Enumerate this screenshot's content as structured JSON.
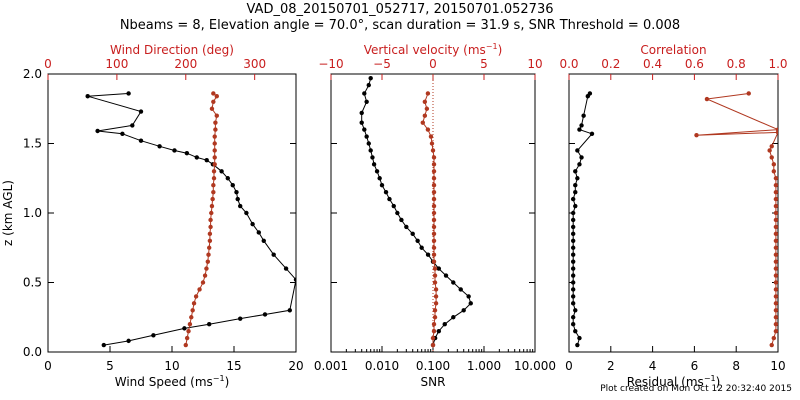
{
  "title_line1": "VAD_08_20150701_052717, 20150701.052736",
  "title_line2": "Nbeams = 8, Elevation angle = 70.0°, scan duration = 31.9 s, SNR Threshold = 0.008",
  "footer": "Plot created on Mon Oct 12 20:32:40 2015",
  "colors": {
    "primary": "#000000",
    "secondary": "#b03820",
    "secondary_text": "#c81e1e"
  },
  "chart_data": [
    {
      "type": "line",
      "ylabel": "z (km AGL)",
      "ylim": [
        0,
        2.0
      ],
      "yticks": [
        "0.0",
        "0.5",
        "1.0",
        "1.5",
        "2.0"
      ],
      "bottom_axis": {
        "label": "Wind Speed (ms",
        "label_sup": "−1",
        "label_end": ")",
        "range": [
          0,
          20
        ],
        "ticks": [
          "0",
          "5",
          "10",
          "15",
          "20"
        ]
      },
      "top_axis": {
        "label": "Wind Direction (deg)",
        "range": [
          0,
          360
        ],
        "ticks": [
          "0",
          "100",
          "200",
          "300"
        ]
      },
      "series": [
        {
          "axis": "bottom",
          "color": "black",
          "x": [
            4.5,
            6.5,
            8.5,
            11.0,
            13.0,
            15.5,
            17.5,
            19.5,
            20.0,
            19.2,
            18.2,
            17.4,
            17.0,
            16.5,
            16.0,
            15.5,
            15.3,
            15.2,
            14.9,
            14.5,
            14.0,
            13.3,
            12.8,
            12.0,
            11.2,
            10.2,
            9.0,
            7.5,
            6.0,
            4.0,
            6.8,
            7.5,
            3.2,
            6.5
          ],
          "y": [
            0.05,
            0.08,
            0.12,
            0.17,
            0.2,
            0.24,
            0.27,
            0.3,
            0.52,
            0.6,
            0.7,
            0.8,
            0.86,
            0.92,
            1.0,
            1.05,
            1.1,
            1.15,
            1.2,
            1.25,
            1.3,
            1.35,
            1.38,
            1.4,
            1.43,
            1.45,
            1.48,
            1.52,
            1.57,
            1.59,
            1.63,
            1.73,
            1.84,
            1.86
          ]
        },
        {
          "axis": "top",
          "color": "red",
          "x": [
            200,
            202,
            204,
            206,
            208,
            210,
            212,
            215,
            220,
            225,
            228,
            230,
            232,
            233,
            234,
            235,
            235,
            236,
            236,
            237,
            238,
            239,
            240,
            240,
            241,
            241,
            242,
            242,
            242,
            242,
            242,
            243,
            243,
            245,
            238,
            240,
            245,
            240
          ],
          "y": [
            0.05,
            0.1,
            0.15,
            0.2,
            0.25,
            0.3,
            0.35,
            0.4,
            0.45,
            0.5,
            0.55,
            0.6,
            0.65,
            0.7,
            0.75,
            0.8,
            0.85,
            0.9,
            0.95,
            1.0,
            1.05,
            1.1,
            1.15,
            1.2,
            1.25,
            1.3,
            1.35,
            1.4,
            1.45,
            1.5,
            1.55,
            1.6,
            1.65,
            1.7,
            1.75,
            1.8,
            1.84,
            1.86
          ]
        }
      ]
    },
    {
      "type": "line",
      "ylim": [
        0,
        2.0
      ],
      "bottom_axis": {
        "label": "SNR",
        "scale": "log",
        "range": [
          0.001,
          10.0
        ],
        "ticks": [
          "0.001",
          "0.010",
          "0.100",
          "1.000",
          "10.000"
        ]
      },
      "top_axis": {
        "label": "Vertical velocity (ms",
        "label_sup": "−1",
        "label_end": ")",
        "range": [
          -10,
          10
        ],
        "ticks": [
          "−10",
          "−5",
          "0",
          "5",
          "10"
        ]
      },
      "reference_line": {
        "axis": "top",
        "x": 0,
        "style": "dotted",
        "color": "red"
      },
      "series": [
        {
          "axis": "bottom",
          "color": "black",
          "x": [
            0.1,
            0.11,
            0.13,
            0.17,
            0.25,
            0.4,
            0.55,
            0.5,
            0.35,
            0.25,
            0.18,
            0.13,
            0.1,
            0.08,
            0.06,
            0.05,
            0.04,
            0.03,
            0.024,
            0.02,
            0.017,
            0.014,
            0.012,
            0.01,
            0.009,
            0.008,
            0.007,
            0.0065,
            0.006,
            0.0055,
            0.005,
            0.0045,
            0.004,
            0.004,
            0.005,
            0.0045,
            0.0055,
            0.006
          ],
          "y": [
            0.05,
            0.1,
            0.15,
            0.2,
            0.25,
            0.3,
            0.35,
            0.4,
            0.45,
            0.5,
            0.55,
            0.6,
            0.65,
            0.7,
            0.75,
            0.8,
            0.85,
            0.9,
            0.95,
            1.0,
            1.05,
            1.1,
            1.15,
            1.2,
            1.25,
            1.3,
            1.35,
            1.4,
            1.45,
            1.5,
            1.55,
            1.6,
            1.65,
            1.72,
            1.8,
            1.86,
            1.92,
            1.97
          ]
        },
        {
          "axis": "top",
          "color": "red",
          "x": [
            0,
            0,
            0.1,
            0.1,
            0.2,
            0.2,
            0.3,
            0.3,
            0.3,
            0.2,
            0.2,
            0.2,
            0.1,
            0.1,
            0.1,
            0.1,
            0.1,
            0.1,
            0.1,
            0.1,
            0.1,
            0.1,
            0.1,
            0.1,
            0.1,
            0.1,
            0.1,
            0.1,
            0.0,
            -0.1,
            -0.2,
            -0.5,
            -1.0,
            -0.8,
            -0.6,
            -0.8,
            -0.5
          ],
          "y": [
            0.05,
            0.1,
            0.15,
            0.2,
            0.25,
            0.3,
            0.35,
            0.4,
            0.45,
            0.5,
            0.55,
            0.6,
            0.65,
            0.7,
            0.75,
            0.8,
            0.85,
            0.9,
            0.95,
            1.0,
            1.05,
            1.1,
            1.15,
            1.2,
            1.25,
            1.3,
            1.35,
            1.4,
            1.45,
            1.5,
            1.55,
            1.6,
            1.65,
            1.7,
            1.75,
            1.8,
            1.86
          ]
        }
      ]
    },
    {
      "type": "line",
      "ylim": [
        0,
        2.0
      ],
      "bottom_axis": {
        "label": "Residual (ms",
        "label_sup": "−1",
        "label_end": ")",
        "range": [
          0,
          10
        ],
        "ticks": [
          "0",
          "2",
          "4",
          "6",
          "8",
          "10"
        ]
      },
      "top_axis": {
        "label": "Correlation",
        "range": [
          0,
          1.0
        ],
        "ticks": [
          "0.0",
          "0.2",
          "0.4",
          "0.6",
          "0.8",
          "1.0"
        ]
      },
      "series": [
        {
          "axis": "bottom",
          "color": "black",
          "x": [
            0.4,
            0.5,
            0.3,
            0.2,
            0.2,
            0.3,
            0.2,
            0.2,
            0.2,
            0.2,
            0.2,
            0.2,
            0.2,
            0.2,
            0.2,
            0.2,
            0.2,
            0.2,
            0.2,
            0.2,
            0.3,
            0.2,
            0.3,
            0.3,
            0.4,
            0.3,
            0.5,
            0.6,
            0.4,
            1.1,
            0.5,
            0.6,
            0.7,
            0.9,
            1.0
          ],
          "y": [
            0.05,
            0.1,
            0.15,
            0.2,
            0.25,
            0.3,
            0.35,
            0.4,
            0.45,
            0.5,
            0.55,
            0.6,
            0.65,
            0.7,
            0.75,
            0.8,
            0.85,
            0.9,
            0.95,
            1.0,
            1.05,
            1.1,
            1.15,
            1.2,
            1.25,
            1.3,
            1.35,
            1.4,
            1.45,
            1.57,
            1.6,
            1.63,
            1.7,
            1.84,
            1.86
          ]
        },
        {
          "axis": "top",
          "color": "red",
          "x": [
            0.97,
            0.98,
            0.99,
            0.99,
            0.99,
            0.99,
            0.99,
            0.99,
            0.99,
            0.99,
            0.99,
            0.99,
            0.99,
            0.99,
            0.99,
            0.99,
            0.99,
            0.99,
            0.99,
            0.99,
            0.99,
            0.99,
            0.99,
            0.99,
            0.99,
            0.98,
            0.98,
            0.97,
            0.96,
            0.97,
            1.0,
            0.61,
            1.0,
            0.66,
            0.86
          ],
          "y": [
            0.05,
            0.1,
            0.15,
            0.2,
            0.25,
            0.3,
            0.35,
            0.4,
            0.45,
            0.5,
            0.55,
            0.6,
            0.65,
            0.7,
            0.75,
            0.8,
            0.85,
            0.9,
            0.95,
            1.0,
            1.05,
            1.1,
            1.15,
            1.2,
            1.25,
            1.3,
            1.35,
            1.4,
            1.45,
            1.48,
            1.58,
            1.56,
            1.6,
            1.82,
            1.86
          ]
        }
      ]
    }
  ]
}
